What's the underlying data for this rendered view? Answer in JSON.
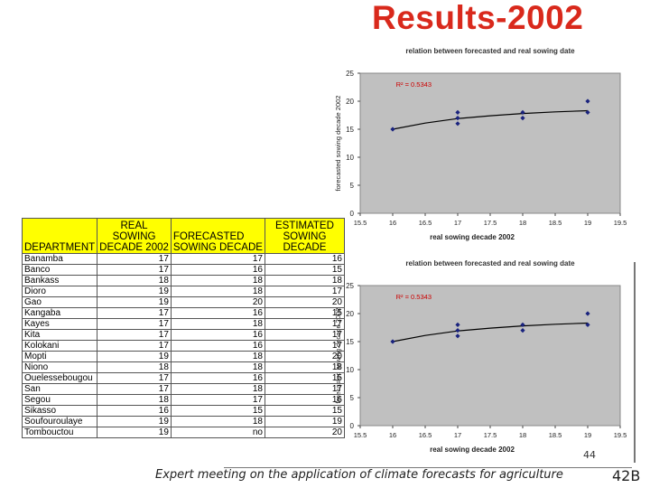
{
  "slide": {
    "title": "Results-2002",
    "footer": "Expert meeting on the application of climate forecasts for agriculture",
    "slide_number": "44",
    "code": "42B"
  },
  "table": {
    "headers": [
      "DEPARTMENT",
      "REAL SOWING DECADE 2002",
      "FORECASTED SOWING DECADE",
      "ESTIMATED SOWING DECADE"
    ],
    "header_lines": {
      "c2": [
        "REAL",
        "SOWING",
        "DECADE 2002"
      ],
      "c3": [
        "FORECASTED",
        "SOWING DECADE"
      ],
      "c4": [
        "ESTIMATED",
        "SOWING",
        "DECADE"
      ]
    },
    "rows": [
      [
        "Banamba",
        "17",
        "17",
        "16"
      ],
      [
        "Banco",
        "17",
        "16",
        "15"
      ],
      [
        "Bankass",
        "18",
        "18",
        "18"
      ],
      [
        "Dioro",
        "19",
        "18",
        "17"
      ],
      [
        "Gao",
        "19",
        "20",
        "20"
      ],
      [
        "Kangaba",
        "17",
        "16",
        "15"
      ],
      [
        "Kayes",
        "17",
        "18",
        "17"
      ],
      [
        "Kita",
        "17",
        "16",
        "17"
      ],
      [
        "Kolokani",
        "17",
        "16",
        "17"
      ],
      [
        "Mopti",
        "19",
        "18",
        "20"
      ],
      [
        "Niono",
        "18",
        "18",
        "18"
      ],
      [
        "Ouelessebougou",
        "17",
        "16",
        "15"
      ],
      [
        "San",
        "17",
        "18",
        "17"
      ],
      [
        "Segou",
        "18",
        "17",
        "16"
      ],
      [
        "Sikasso",
        "16",
        "15",
        "15"
      ],
      [
        "Soufouroulaye",
        "19",
        "18",
        "19"
      ],
      [
        "Tombouctou",
        "19",
        "no",
        "20"
      ]
    ]
  },
  "chart_data": [
    {
      "type": "scatter",
      "title": "relation between forecasted and real sowing date",
      "xlabel": "real sowing decade 2002",
      "ylabel": "forecasted sowing decade 2002",
      "xlim": [
        15.5,
        19.5
      ],
      "ylim": [
        0,
        25
      ],
      "x_ticks": [
        "15.5",
        "16",
        "16.5",
        "17",
        "17.5",
        "18",
        "18.5",
        "19",
        "19.5"
      ],
      "y_ticks": [
        "0",
        "5",
        "10",
        "15",
        "20",
        "25"
      ],
      "annotation": "R² = 0.5343",
      "series": [
        {
          "name": "points",
          "x": [
            16,
            17,
            17,
            17,
            18,
            18,
            19,
            19
          ],
          "y": [
            15,
            18,
            17,
            16,
            18,
            17,
            20,
            18
          ]
        }
      ],
      "trendline": {
        "x": [
          16,
          16.5,
          17,
          17.5,
          18,
          18.5,
          19
        ],
        "y": [
          15.0,
          16.1,
          16.9,
          17.4,
          17.8,
          18.1,
          18.3
        ]
      },
      "colors": {
        "plot_bg": "#c0c0c0",
        "marker": "#1a237e",
        "line": "#000000",
        "annotation": "#cc0000"
      }
    },
    {
      "type": "scatter",
      "title": "relation between forecasted and real sowing date",
      "xlabel": "real sowing decade 2002",
      "ylabel": "forecasted sowing decade 2002",
      "xlim": [
        15.5,
        19.5
      ],
      "ylim": [
        0,
        25
      ],
      "x_ticks": [
        "15.5",
        "16",
        "16.5",
        "17",
        "17.5",
        "18",
        "18.5",
        "19",
        "19.5"
      ],
      "y_ticks": [
        "0",
        "5",
        "10",
        "15",
        "20",
        "25"
      ],
      "annotation": "R² = 0.5343",
      "series": [
        {
          "name": "points",
          "x": [
            16,
            17,
            17,
            17,
            18,
            18,
            19,
            19
          ],
          "y": [
            15,
            18,
            17,
            16,
            18,
            17,
            20,
            18
          ]
        }
      ],
      "trendline": {
        "x": [
          16,
          16.5,
          17,
          17.5,
          18,
          18.5,
          19
        ],
        "y": [
          15.0,
          16.1,
          16.9,
          17.4,
          17.8,
          18.1,
          18.3
        ]
      },
      "colors": {
        "plot_bg": "#c0c0c0",
        "marker": "#1a237e",
        "line": "#000000",
        "annotation": "#cc0000"
      }
    }
  ]
}
